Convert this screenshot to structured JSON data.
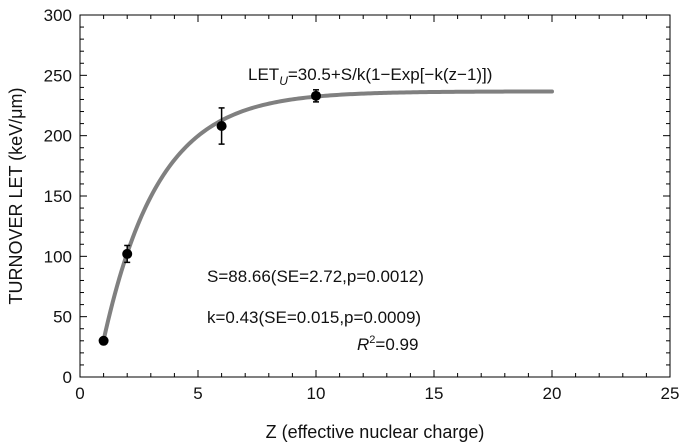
{
  "chart_data": {
    "type": "scatter",
    "title": "",
    "xlabel": "Z (effective nuclear charge)",
    "ylabel": "TURNOVER LET (keV/μm)",
    "xlim": [
      0,
      25
    ],
    "ylim": [
      0,
      300
    ],
    "xticks": [
      0,
      5,
      10,
      15,
      20,
      25
    ],
    "yticks": [
      0,
      50,
      100,
      150,
      200,
      250,
      300
    ],
    "grid": false,
    "colors": {
      "points": "#000000",
      "fit_curve": "#808080"
    },
    "points": [
      {
        "x": 1,
        "y": 30,
        "err": 2
      },
      {
        "x": 2,
        "y": 102,
        "err": 7
      },
      {
        "x": 6,
        "y": 208,
        "err": 15
      },
      {
        "x": 10,
        "y": 233,
        "err": 5
      }
    ],
    "fit": {
      "equation": "LET_U = 30.5 + S/k(1 − Exp[−k(z − 1)])",
      "offset": 30.5,
      "S": 88.66,
      "k": 0.43,
      "x_start": 1,
      "x_end": 20
    },
    "annotations": {
      "equation_main": "LET",
      "equation_sub": "U",
      "equation_rest": "=30.5+S/k(1−Exp[−k(z−1)])",
      "s_line": "S=88.66(SE=2.72,p=0.0012)",
      "k_line": "k=0.43(SE=0.015,p=0.0009)",
      "r2_prefix": "R",
      "r2_sup": "2",
      "r2_rest": "=0.99"
    }
  }
}
